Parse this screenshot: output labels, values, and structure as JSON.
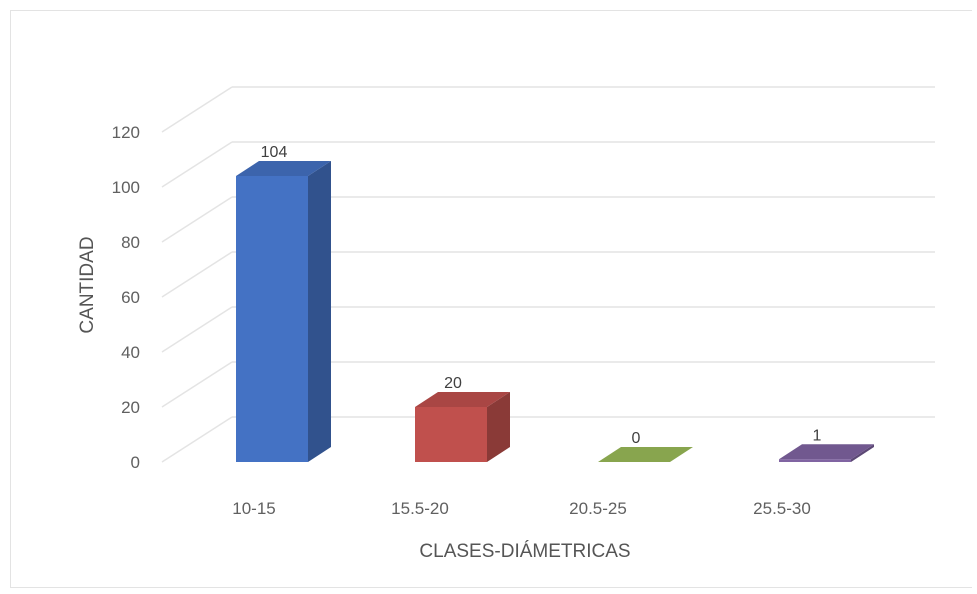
{
  "chart_data": {
    "type": "bar",
    "style": "3d-column",
    "title": "",
    "xlabel": "CLASES-DIÁMETRICAS",
    "ylabel": "CANTIDAD",
    "categories": [
      "10-15",
      "15.5-20",
      "20.5-25",
      "25.5-30"
    ],
    "values": [
      104,
      20,
      0,
      1
    ],
    "data_labels": [
      "104",
      "20",
      "0",
      "1"
    ],
    "bar_colors": [
      "#4472c4",
      "#c0504d",
      "#9bbb59",
      "#8064a2"
    ],
    "y_ticks": [
      "0",
      "20",
      "40",
      "60",
      "80",
      "100",
      "120"
    ],
    "ylim": [
      0,
      120
    ],
    "grid": true,
    "legend": "none"
  }
}
